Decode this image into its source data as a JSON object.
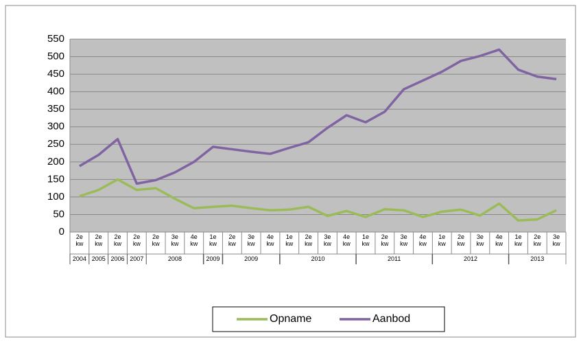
{
  "chart_data": {
    "type": "line",
    "categories": [
      "2e kw",
      "2e kw",
      "2e kw",
      "2e kw",
      "2e kw",
      "3e kw",
      "4e kw",
      "1e kw",
      "2e kw",
      "3e kw",
      "4e kw",
      "1e kw",
      "2e kw",
      "3e kw",
      "4e kw",
      "1e kw",
      "2e kw",
      "3e kw",
      "4e kw",
      "1e kw",
      "2e kw",
      "3e kw",
      "4e kw",
      "1e kw",
      "2e kw",
      "3e kw"
    ],
    "year_groups": [
      {
        "label": "2004",
        "count": 1
      },
      {
        "label": "2005",
        "count": 1
      },
      {
        "label": "2006",
        "count": 1
      },
      {
        "label": "2007",
        "count": 1
      },
      {
        "label": "2008",
        "count": 3
      },
      {
        "label": "2009",
        "count": 1
      },
      {
        "label": "2009",
        "count": 3
      },
      {
        "label": "2010",
        "count": 4
      },
      {
        "label": "2011",
        "count": 4
      },
      {
        "label": "2012",
        "count": 4
      },
      {
        "label": "2013",
        "count": 3
      }
    ],
    "series": [
      {
        "name": "Opname",
        "color": "#9bbb59",
        "values": [
          102,
          120,
          150,
          120,
          125,
          95,
          68,
          72,
          75,
          68,
          62,
          64,
          72,
          46,
          60,
          43,
          65,
          62,
          43,
          58,
          64,
          47,
          81,
          33,
          36,
          62
        ]
      },
      {
        "name": "Aanbod",
        "color": "#8064a2",
        "values": [
          188,
          220,
          265,
          138,
          148,
          170,
          200,
          243,
          236,
          229,
          223,
          240,
          256,
          297,
          333,
          313,
          343,
          407,
          432,
          457,
          488,
          502,
          520,
          463,
          443,
          436
        ]
      }
    ],
    "ylim": [
      0,
      550
    ],
    "yticks": [
      0,
      50,
      100,
      150,
      200,
      250,
      300,
      350,
      400,
      450,
      500,
      550
    ],
    "grid": true,
    "legend": "bottom"
  }
}
